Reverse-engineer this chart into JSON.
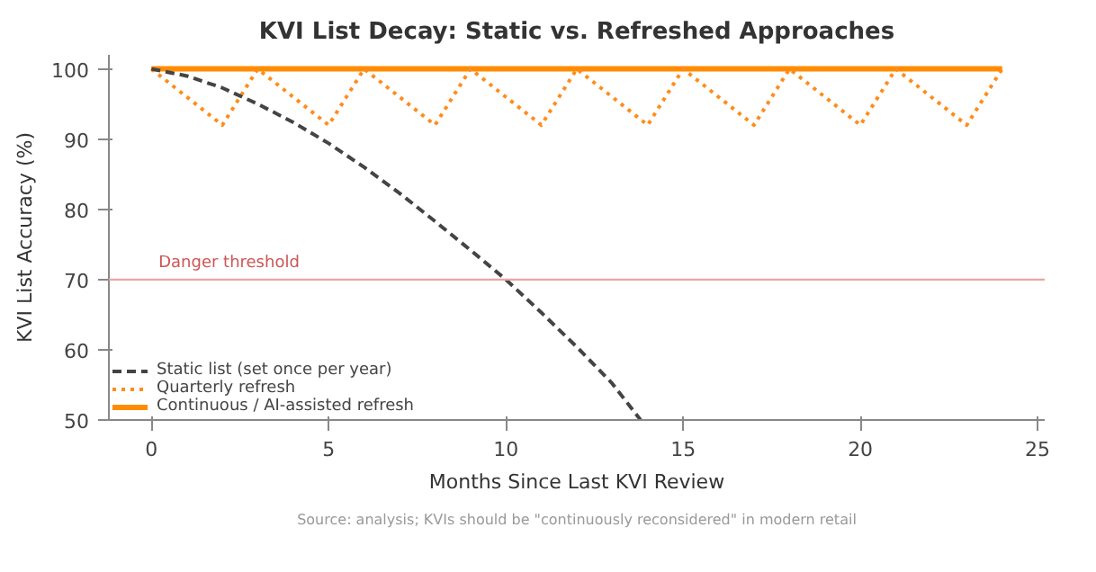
{
  "chart_data": {
    "type": "line",
    "title": "KVI List Decay: Static vs. Refreshed Approaches",
    "xlabel": "Months Since Last KVI Review",
    "ylabel": "KVI List Accuracy (%)",
    "xlim": [
      -1.2,
      25.2
    ],
    "ylim": [
      50,
      102
    ],
    "xticks": [
      0,
      5,
      10,
      15,
      20,
      25
    ],
    "yticks": [
      50,
      60,
      70,
      80,
      90,
      100
    ],
    "grid": false,
    "legend": "bottom left",
    "marker": "none",
    "series": [
      {
        "name": "Static list (set once per year)",
        "color": "#444444",
        "line_style": "dashed",
        "x": [
          0,
          1,
          2,
          3,
          4,
          5,
          6,
          7,
          8,
          9,
          10,
          11,
          12,
          13,
          13.8
        ],
        "values": [
          100,
          99,
          97.3,
          95,
          92.4,
          89.4,
          86,
          82.3,
          78.3,
          74.2,
          70,
          65.3,
          60.4,
          55.2,
          50
        ]
      },
      {
        "name": "Quarterly refresh",
        "color": "#ff8c1a",
        "line_style": "dotted",
        "x": [
          0,
          2,
          3,
          5,
          6,
          8,
          9,
          11,
          12,
          14,
          15,
          17,
          18,
          20,
          21,
          23,
          24
        ],
        "values": [
          100,
          92,
          100,
          92,
          100,
          92,
          100,
          92,
          100,
          92,
          100,
          92,
          100,
          92,
          100,
          92,
          100
        ]
      },
      {
        "name": "Continuous / AI-assisted refresh",
        "color": "#ff8c00",
        "line_style": "solid",
        "x": [
          0,
          24
        ],
        "values": [
          100,
          100
        ]
      }
    ],
    "ref_lines": [
      {
        "axis": "y",
        "value": 70,
        "label": "Danger threshold",
        "color": "#e8a5a5"
      }
    ],
    "annotations": [
      "Source: analysis; KVIs should be \"continuously reconsidered\" in modern retail"
    ]
  }
}
